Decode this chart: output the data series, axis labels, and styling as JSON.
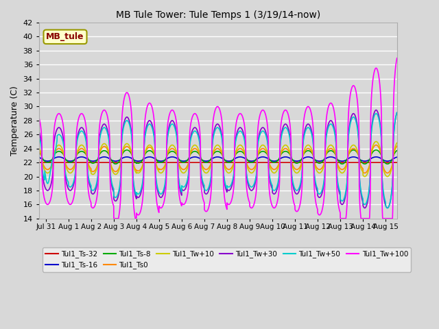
{
  "title": "MB Tule Tower: Tule Temps 1 (3/19/14-now)",
  "ylabel": "Temperature (C)",
  "xlim_days": [
    -0.3,
    15.5
  ],
  "ylim": [
    14,
    42
  ],
  "yticks": [
    14,
    16,
    18,
    20,
    22,
    24,
    26,
    28,
    30,
    32,
    34,
    36,
    38,
    40,
    42
  ],
  "xtick_labels": [
    "Jul 31",
    "Aug 1",
    "Aug 2",
    "Aug 3",
    "Aug 4",
    "Aug 5",
    "Aug 6",
    "Aug 7",
    "Aug 8",
    "Aug 9",
    "Aug 10",
    "Aug 11",
    "Aug 12",
    "Aug 13",
    "Aug 14",
    "Aug 15"
  ],
  "xtick_positions": [
    0,
    1,
    2,
    3,
    4,
    5,
    6,
    7,
    8,
    9,
    10,
    11,
    12,
    13,
    14,
    15
  ],
  "background_color": "#d8d8d8",
  "plot_bg_color": "#d8d8d8",
  "grid_color": "#ffffff",
  "legend_box_color": "#ffffcc",
  "legend_box_edge": "#999900",
  "legend_label_color": "#880000",
  "series": [
    {
      "label": "Tul1_Ts-32",
      "color": "#cc0000",
      "lw": 1.2
    },
    {
      "label": "Tul1_Ts-16",
      "color": "#0000cc",
      "lw": 1.2
    },
    {
      "label": "Tul1_Ts-8",
      "color": "#00aa00",
      "lw": 1.2
    },
    {
      "label": "Tul1_Ts0",
      "color": "#ff8800",
      "lw": 1.2
    },
    {
      "label": "Tul1_Tw+10",
      "color": "#cccc00",
      "lw": 1.2
    },
    {
      "label": "Tul1_Tw+30",
      "color": "#8800cc",
      "lw": 1.2
    },
    {
      "label": "Tul1_Tw+50",
      "color": "#00cccc",
      "lw": 1.2
    },
    {
      "label": "Tul1_Tw+100",
      "color": "#ff00ff",
      "lw": 1.2
    }
  ]
}
